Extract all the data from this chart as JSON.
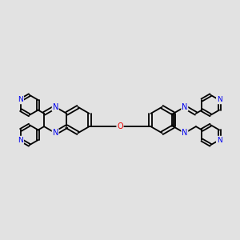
{
  "bg_color": "#e2e2e2",
  "bond_color": "#000000",
  "N_color": "#0000ee",
  "O_color": "#ee0000",
  "lw": 1.3,
  "dbo": 0.035,
  "figsize": [
    3.0,
    3.0
  ],
  "dpi": 100,
  "xlim": [
    -2.6,
    2.6
  ],
  "ylim": [
    -1.4,
    1.4
  ]
}
